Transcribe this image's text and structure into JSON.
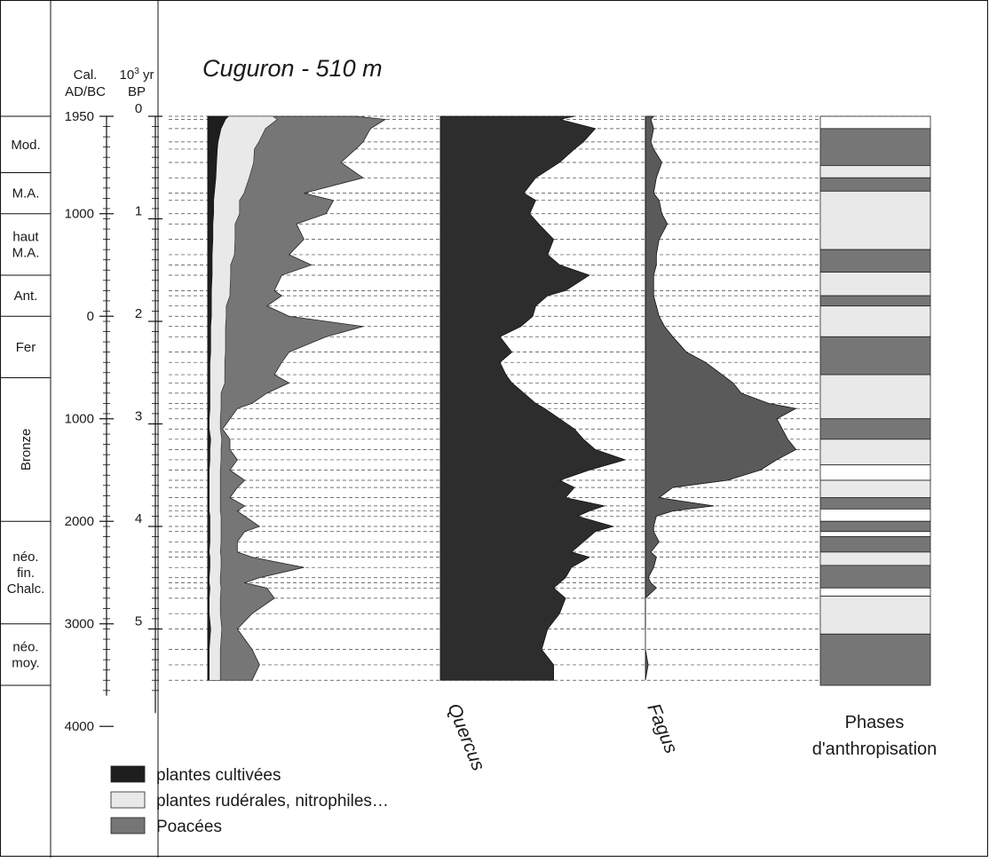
{
  "chart_data": {
    "type": "area",
    "title": "Cuguron - 510 m",
    "axes": {
      "cal_header": [
        "Cal.",
        "AD/BC"
      ],
      "bp_header_base": "10",
      "bp_header_sup": "3",
      "bp_header_unit": " yr",
      "bp_header_line2": "BP",
      "cal_ticks": [
        {
          "label": "1950",
          "bp_ky": 0.0
        },
        {
          "label": "1000",
          "bp_ky": 0.95
        },
        {
          "label": "0",
          "bp_ky": 1.95
        },
        {
          "label": "1000",
          "bp_ky": 2.95
        },
        {
          "label": "2000",
          "bp_ky": 3.95
        },
        {
          "label": "3000",
          "bp_ky": 4.95
        },
        {
          "label": "4000",
          "bp_ky": 5.95
        }
      ],
      "bp_ticks": [
        "0",
        "1",
        "2",
        "3",
        "4",
        "5"
      ],
      "bp_range": [
        0,
        5.7
      ]
    },
    "periods": [
      {
        "lines": [
          "Mod."
        ],
        "from": 0.0,
        "to": 0.55
      },
      {
        "lines": [
          "M.A."
        ],
        "from": 0.55,
        "to": 0.95
      },
      {
        "lines": [
          "haut",
          "M.A."
        ],
        "from": 0.95,
        "to": 1.55
      },
      {
        "lines": [
          "Ant."
        ],
        "from": 1.55,
        "to": 1.95
      },
      {
        "lines": [
          "Fer"
        ],
        "from": 1.95,
        "to": 2.55
      },
      {
        "lines": [
          "Bronze"
        ],
        "from": 2.55,
        "to": 3.95
      },
      {
        "lines": [
          "néo.",
          "fin.",
          "Chalc."
        ],
        "from": 3.95,
        "to": 4.95
      },
      {
        "lines": [
          "néo.",
          "moy."
        ],
        "from": 4.95,
        "to": 5.55
      }
    ],
    "sample_depths": [
      0,
      0.03,
      0.12,
      0.25,
      0.32,
      0.45,
      0.6,
      0.75,
      0.82,
      0.95,
      1.05,
      1.2,
      1.35,
      1.45,
      1.55,
      1.7,
      1.75,
      1.85,
      1.95,
      2.05,
      2.15,
      2.3,
      2.4,
      2.52,
      2.6,
      2.7,
      2.8,
      2.85,
      2.95,
      3.05,
      3.15,
      3.25,
      3.35,
      3.45,
      3.55,
      3.62,
      3.72,
      3.8,
      3.85,
      3.9,
      4.0,
      4.05,
      4.15,
      4.25,
      4.3,
      4.4,
      4.5,
      4.55,
      4.6,
      4.7,
      4.85,
      5.0,
      5.2,
      5.35,
      5.5
    ],
    "anthro_curves": {
      "cultivees": [
        2.8,
        2.4,
        1.8,
        1.4,
        1.3,
        1.2,
        1.1,
        0.9,
        0.8,
        0.8,
        0.7,
        0.7,
        0.6,
        0.6,
        0.6,
        0.5,
        0.5,
        0.5,
        0.5,
        0.4,
        0.4,
        0.4,
        0.3,
        0.3,
        0.3,
        0.3,
        0.3,
        0.3,
        0.2,
        0.2,
        0.4,
        0.3,
        0.3,
        0.2,
        0.2,
        0.2,
        0.2,
        0.2,
        0.2,
        0.3,
        0.3,
        0.3,
        0.3,
        0.2,
        0.3,
        0.3,
        0.2,
        0.2,
        0.3,
        0.2,
        0.2,
        0.4,
        0.2,
        0.2,
        0.2
      ],
      "ruderales": [
        6,
        7,
        6,
        5.5,
        5,
        5,
        4.5,
        4,
        3.5,
        3.5,
        3,
        3,
        3,
        2.5,
        2.5,
        2.5,
        2.5,
        2,
        2,
        2,
        2,
        2,
        2,
        2,
        2,
        1.5,
        1.5,
        1.5,
        1.5,
        1.5,
        1.5,
        1.5,
        1.5,
        1.5,
        1.5,
        1.5,
        1.5,
        1.5,
        1.5,
        1.5,
        1.5,
        1.5,
        1.5,
        1.5,
        1.5,
        1.5,
        1.5,
        1.5,
        1.5,
        1.5,
        1.5,
        1.5,
        1.5,
        1.5,
        1.5
      ],
      "poacees_cumulative": [
        20,
        24,
        22,
        21,
        20,
        18,
        21,
        13,
        17,
        16,
        12,
        13,
        11,
        14,
        10,
        9,
        10,
        8,
        11,
        21,
        16,
        11,
        10,
        9,
        11,
        8,
        6,
        4,
        3,
        2,
        3,
        3,
        4,
        3,
        5,
        4,
        3,
        5,
        4,
        5,
        7,
        5,
        4,
        4,
        6,
        13,
        7,
        5,
        8,
        9,
        6,
        4,
        6,
        7,
        6
      ],
      "units": "%",
      "scale_max": 30
    },
    "quercus": {
      "label": "Quercus",
      "values": [
        45,
        40,
        52,
        48,
        45,
        40,
        32,
        28,
        32,
        30,
        33,
        38,
        36,
        40,
        50,
        42,
        36,
        32,
        31,
        27,
        20,
        24,
        20,
        22,
        24,
        28,
        32,
        35,
        40,
        45,
        48,
        52,
        62,
        50,
        40,
        45,
        42,
        55,
        50,
        46,
        58,
        52,
        48,
        44,
        50,
        44,
        42,
        40,
        38,
        42,
        40,
        36,
        34,
        38,
        38
      ],
      "scale_max": 70
    },
    "fagus": {
      "label": "Fagus",
      "values": [
        3,
        2,
        3,
        2,
        3,
        6,
        4,
        3,
        5,
        6,
        8,
        5,
        4,
        4,
        3,
        3,
        3,
        4,
        5,
        7,
        10,
        15,
        22,
        28,
        32,
        35,
        45,
        55,
        48,
        50,
        52,
        55,
        48,
        42,
        30,
        10,
        5,
        25,
        10,
        4,
        3,
        3,
        5,
        2,
        4,
        3,
        1,
        2,
        4,
        0,
        0,
        0,
        0,
        1,
        0
      ],
      "scale_max": 60
    },
    "phases": {
      "label_lines": [
        "Phases",
        "d'anthropisation"
      ],
      "segments": [
        {
          "from": 0.0,
          "to": 0.12,
          "class": "none"
        },
        {
          "from": 0.12,
          "to": 0.48,
          "class": "strong"
        },
        {
          "from": 0.48,
          "to": 0.6,
          "class": "light"
        },
        {
          "from": 0.6,
          "to": 0.73,
          "class": "strong"
        },
        {
          "from": 0.73,
          "to": 1.3,
          "class": "light"
        },
        {
          "from": 1.3,
          "to": 1.52,
          "class": "strong"
        },
        {
          "from": 1.52,
          "to": 1.75,
          "class": "light"
        },
        {
          "from": 1.75,
          "to": 1.85,
          "class": "strong"
        },
        {
          "from": 1.85,
          "to": 2.15,
          "class": "light"
        },
        {
          "from": 2.15,
          "to": 2.52,
          "class": "strong"
        },
        {
          "from": 2.52,
          "to": 2.95,
          "class": "light"
        },
        {
          "from": 2.95,
          "to": 3.15,
          "class": "strong"
        },
        {
          "from": 3.15,
          "to": 3.4,
          "class": "light"
        },
        {
          "from": 3.4,
          "to": 3.55,
          "class": "none"
        },
        {
          "from": 3.55,
          "to": 3.72,
          "class": "light"
        },
        {
          "from": 3.72,
          "to": 3.83,
          "class": "strong"
        },
        {
          "from": 3.83,
          "to": 3.95,
          "class": "none"
        },
        {
          "from": 3.95,
          "to": 4.05,
          "class": "strong"
        },
        {
          "from": 4.05,
          "to": 4.1,
          "class": "none"
        },
        {
          "from": 4.1,
          "to": 4.25,
          "class": "strong"
        },
        {
          "from": 4.25,
          "to": 4.38,
          "class": "light"
        },
        {
          "from": 4.38,
          "to": 4.6,
          "class": "strong"
        },
        {
          "from": 4.6,
          "to": 4.68,
          "class": "none"
        },
        {
          "from": 4.68,
          "to": 5.05,
          "class": "light"
        },
        {
          "from": 5.05,
          "to": 5.55,
          "class": "strong"
        }
      ]
    },
    "legend": [
      {
        "label": "plantes cultivées",
        "color": "#1e1e1e"
      },
      {
        "label": "plantes rudérales, nitrophiles…",
        "color": "#e9e9e9"
      },
      {
        "label": "Poacées",
        "color": "#767676"
      }
    ],
    "colors": {
      "dark": "#1e1e1e",
      "light": "#e9e9e9",
      "medium": "#767676",
      "quercus": "#2d2d2d",
      "fagus": "#5a5a5a"
    }
  }
}
